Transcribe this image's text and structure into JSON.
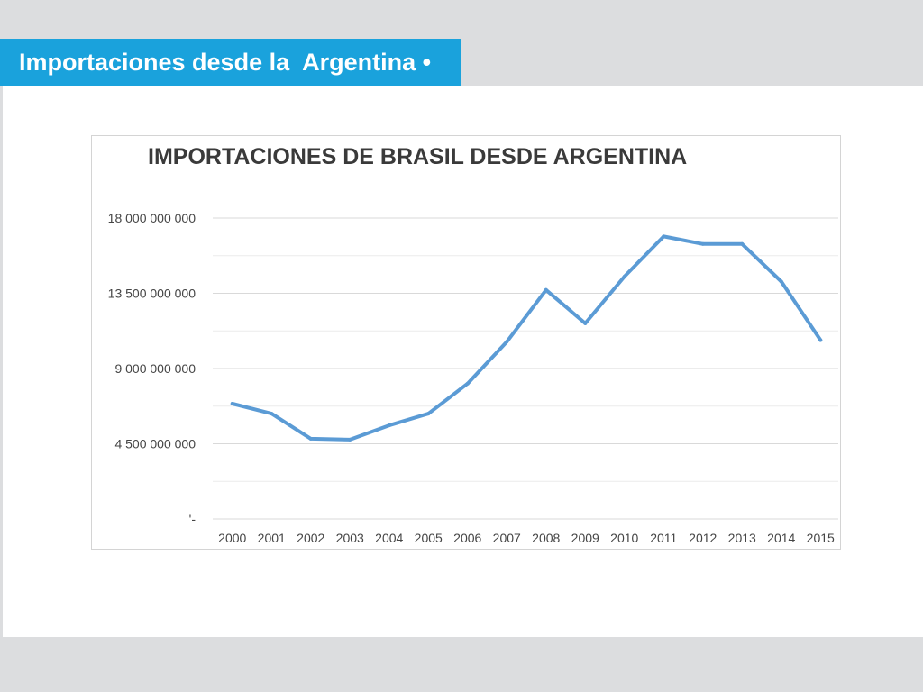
{
  "slide": {
    "title": "Importaciones desde la  Argentina •"
  },
  "colors": {
    "title_bar": "#1aa2dc",
    "line": "#5b9bd5",
    "grid": "#d9d9d9",
    "background": "#dcdddf"
  },
  "chart_data": {
    "type": "line",
    "title": "IMPORTACIONES DE BRASIL DESDE ARGENTINA",
    "xlabel": "",
    "ylabel": "",
    "categories": [
      "2000",
      "2001",
      "2002",
      "2003",
      "2004",
      "2005",
      "2006",
      "2007",
      "2008",
      "2009",
      "2010",
      "2011",
      "2012",
      "2013",
      "2014",
      "2015"
    ],
    "series": [
      {
        "values": [
          6900000000,
          6300000000,
          4800000000,
          4750000000,
          5600000000,
          6300000000,
          8100000000,
          10600000000,
          13700000000,
          11700000000,
          14500000000,
          16900000000,
          16450000000,
          16450000000,
          14200000000,
          10700000000
        ]
      }
    ],
    "ylim": [
      0,
      18000000000
    ],
    "y_ticks": [
      {
        "value": 0,
        "label": "'-"
      },
      {
        "value": 4500000000,
        "label": "4 500 000 000"
      },
      {
        "value": 9000000000,
        "label": "9 000 000 000"
      },
      {
        "value": 13500000000,
        "label": "13 500 000 000"
      },
      {
        "value": 18000000000,
        "label": "18 000 000 000"
      }
    ],
    "minor_grid_values": [
      2250000000,
      6750000000,
      11250000000,
      15750000000
    ],
    "grid": true,
    "legend": "none"
  }
}
